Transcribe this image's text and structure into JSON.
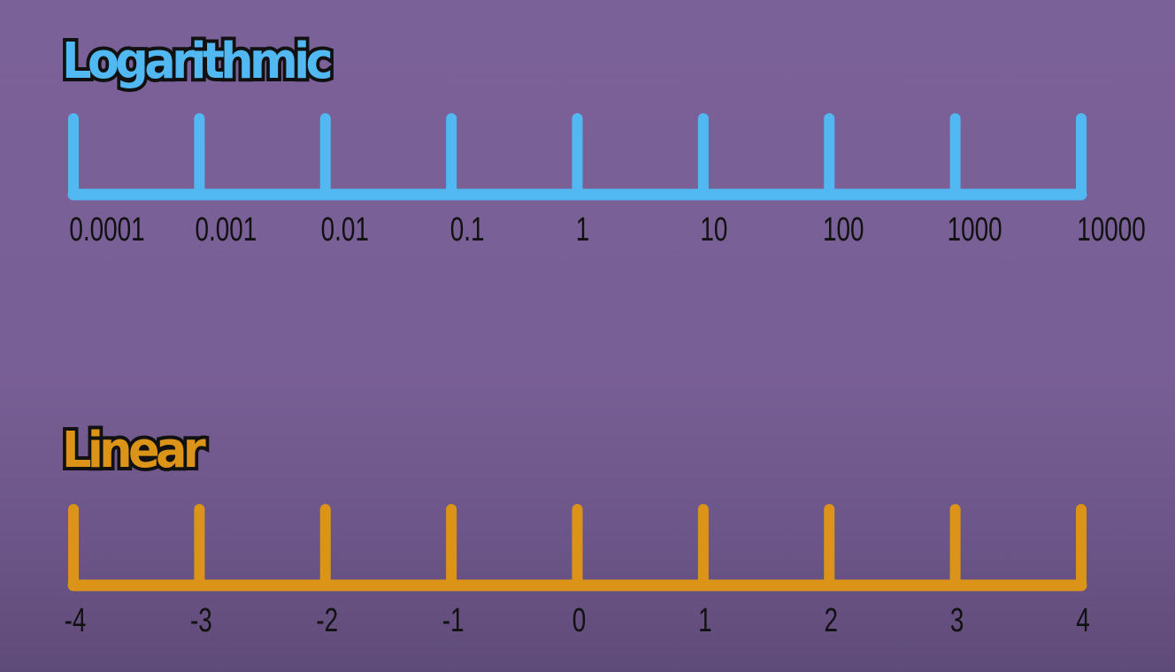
{
  "scales": [
    {
      "id": "log",
      "title": "Logarithmic",
      "color": "#52b8f2",
      "tick_labels": [
        "0.0001",
        "0.001",
        "0.01",
        "0.1",
        "1",
        "10",
        "100",
        "1000",
        "10000"
      ]
    },
    {
      "id": "lin",
      "title": "Linear",
      "color": "#dc9418",
      "tick_labels": [
        "-4",
        "-3",
        "-2",
        "-1",
        "0",
        "1",
        "2",
        "3",
        "4"
      ]
    }
  ]
}
